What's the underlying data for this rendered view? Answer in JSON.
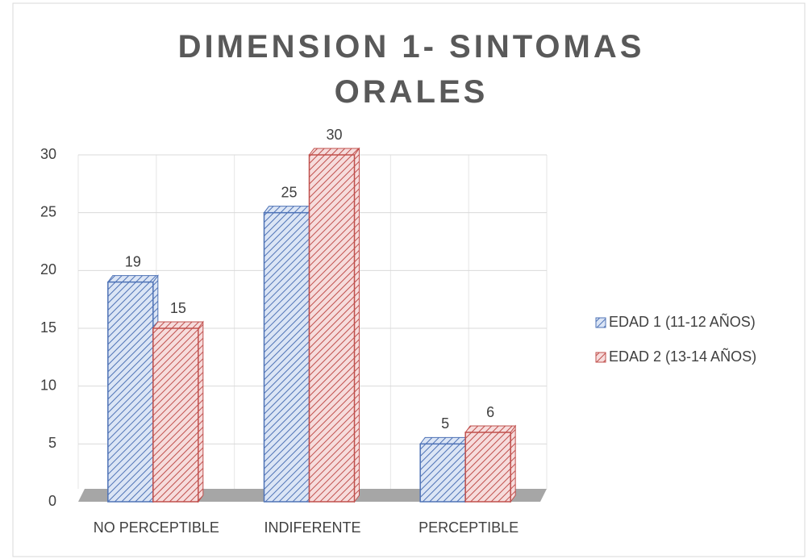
{
  "chart_data": {
    "type": "bar3d",
    "title": "DIMENSION 1- SINTOMAS ORALES",
    "categories": [
      "NO PERCEPTIBLE",
      "INDIFERENTE",
      "PERCEPTIBLE"
    ],
    "series": [
      {
        "name": "EDAD 1 (11-12 AÑOS)",
        "color": "#4f73b6",
        "values": [
          19,
          25,
          5
        ]
      },
      {
        "name": "EDAD 2 (13-14 AÑOS)",
        "color": "#c0504d",
        "values": [
          15,
          30,
          6
        ]
      }
    ],
    "ylim": [
      0,
      30
    ],
    "yticks": [
      0,
      5,
      10,
      15,
      20,
      25,
      30
    ],
    "grid": true,
    "legend": "right"
  }
}
